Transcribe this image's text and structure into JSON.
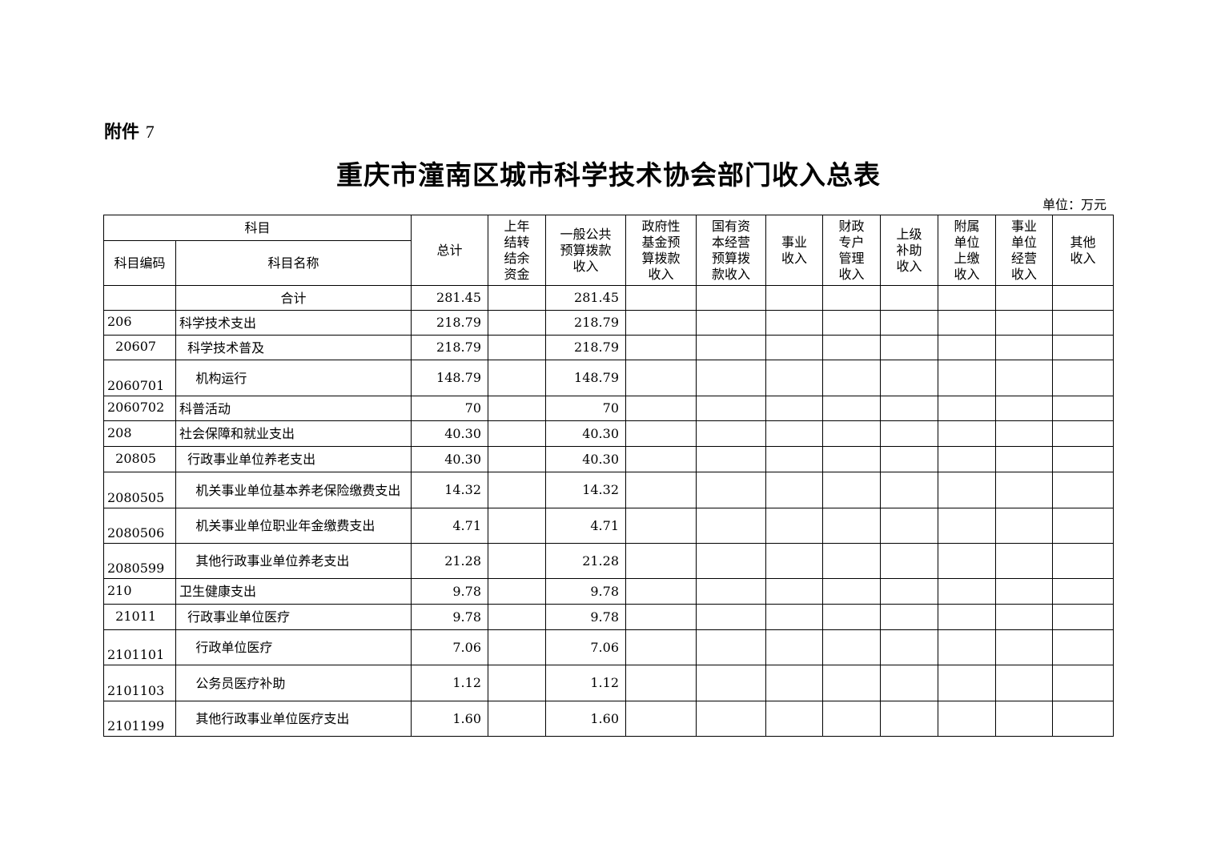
{
  "attachment": {
    "label": "附件",
    "number": "7"
  },
  "title": "重庆市潼南区城市科学技术协会部门收入总表",
  "unit": "单位：万元",
  "headers": {
    "subject": "科目",
    "code": "科目编码",
    "name": "科目名称",
    "total": "总计",
    "carryover": "上年\n结转\n结余\n资金",
    "general": "一般公共\n预算拨款\n收入",
    "fund": "政府性\n基金预\n算拨款\n收入",
    "state_capital": "国有资\n本经营\n预算拨\n款收入",
    "business": "事业\n收入",
    "special": "财政\n专户\n管理\n收入",
    "superior": "上级\n补助\n收入",
    "affiliated": "附属\n单位\n上缴\n收入",
    "operating": "事业\n单位\n经营\n收入",
    "other": "其他\n收入"
  },
  "rows": [
    {
      "code": "",
      "name": "合计",
      "total": "281.45",
      "general": "281.45"
    },
    {
      "code": "206",
      "name": "科学技术支出",
      "total": "218.79",
      "general": "218.79"
    },
    {
      "code": "  20607",
      "name": "  科学技术普及",
      "total": "218.79",
      "general": "218.79"
    },
    {
      "code": "2060701",
      "name": "    机构运行",
      "total": "148.79",
      "general": "148.79"
    },
    {
      "code": "2060702",
      "name": "科普活动",
      "total": "70",
      "general": "70"
    },
    {
      "code": "208",
      "name": "社会保障和就业支出",
      "total": "40.30",
      "general": "40.30"
    },
    {
      "code": "  20805",
      "name": "  行政事业单位养老支出",
      "total": "40.30",
      "general": "40.30"
    },
    {
      "code": "2080505",
      "name": "    机关事业单位基本养老保险缴费支出",
      "total": "14.32",
      "general": "14.32"
    },
    {
      "code": "2080506",
      "name": "    机关事业单位职业年金缴费支出",
      "total": "4.71",
      "general": "4.71"
    },
    {
      "code": "2080599",
      "name": "    其他行政事业单位养老支出",
      "total": "21.28",
      "general": "21.28"
    },
    {
      "code": "210",
      "name": "卫生健康支出",
      "total": "9.78",
      "general": "9.78"
    },
    {
      "code": "  21011",
      "name": "  行政事业单位医疗",
      "total": "9.78",
      "general": "9.78"
    },
    {
      "code": "2101101",
      "name": "    行政单位医疗",
      "total": "7.06",
      "general": "7.06"
    },
    {
      "code": "2101103",
      "name": "    公务员医疗补助",
      "total": "1.12",
      "general": "1.12"
    },
    {
      "code": "2101199",
      "name": "    其他行政事业单位医疗支出",
      "total": "1.60",
      "general": "1.60"
    }
  ]
}
